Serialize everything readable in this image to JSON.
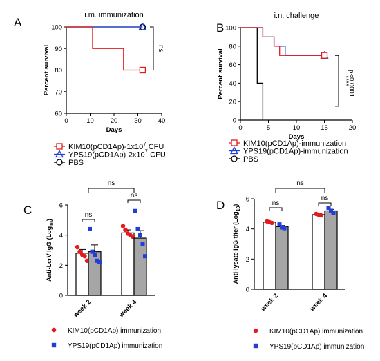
{
  "colors": {
    "red": "#e41a1c",
    "blue": "#1f3fd6",
    "black": "#000000",
    "gray": "#a6a6a6"
  },
  "chart_data": [
    {
      "panel": "A",
      "type": "line",
      "subtype": "kaplan-meier",
      "title": "i.m. immunization",
      "xlabel": "Days",
      "ylabel": "Percent survival",
      "xlim": [
        0,
        40
      ],
      "ylim": [
        60,
        100
      ],
      "xticks": [
        0,
        10,
        20,
        30,
        40
      ],
      "yticks": [
        60,
        70,
        80,
        90,
        100
      ],
      "annotation": "ns",
      "legend_position": "bottom",
      "series": [
        {
          "name": "KIM10(pCD1Ap)-1x10",
          "sup": "7",
          "suffix": " CFU",
          "color": "#e41a1c",
          "marker": "square",
          "x": [
            0,
            11,
            24,
            32
          ],
          "y": [
            100,
            90,
            80,
            80
          ]
        },
        {
          "name": "YPS19(pCD1Ap)-2x10",
          "sup": "7",
          "suffix": " CFU",
          "color": "#1f3fd6",
          "marker": "triangle",
          "x": [
            0,
            32
          ],
          "y": [
            100,
            100
          ]
        },
        {
          "name": "PBS",
          "color": "#000000",
          "marker": "circle",
          "x": [
            0,
            32
          ],
          "y": [
            100,
            100
          ]
        }
      ]
    },
    {
      "panel": "B",
      "type": "line",
      "subtype": "kaplan-meier",
      "title": "i.n. challenge",
      "xlabel": "Days",
      "ylabel": "Percent survival",
      "xlim": [
        0,
        20
      ],
      "ylim": [
        0,
        100
      ],
      "xticks": [
        0,
        5,
        10,
        15,
        20
      ],
      "yticks": [
        0,
        20,
        40,
        60,
        80,
        100
      ],
      "annotation": "****",
      "annotation2": "p<0.0001",
      "legend_position": "bottom",
      "series": [
        {
          "name": "KIM10(pCD1Ap)-immunization",
          "color": "#e41a1c",
          "marker": "square",
          "x": [
            0,
            4,
            6,
            7,
            15
          ],
          "y": [
            100,
            90,
            80,
            70,
            70
          ]
        },
        {
          "name": "YPS19(pCD1Ap)-immunization",
          "color": "#1f3fd6",
          "marker": "triangle",
          "x": [
            0,
            4,
            6,
            8,
            15
          ],
          "y": [
            100,
            90,
            80,
            70,
            70
          ]
        },
        {
          "name": "PBS",
          "color": "#000000",
          "marker": "circle",
          "x": [
            0,
            3,
            4
          ],
          "y": [
            100,
            40,
            0
          ]
        }
      ]
    },
    {
      "panel": "C",
      "type": "bar",
      "ylabel": "Anti-LcrV IgG (Log",
      "ylabel_sub": "10",
      "ylabel_end": ")",
      "categories": [
        "week 2",
        "week 4"
      ],
      "ylim": [
        0,
        6
      ],
      "yticks": [
        0,
        2,
        4,
        6
      ],
      "comparisons": [
        {
          "groups": "within week 2",
          "label": "ns"
        },
        {
          "groups": "within week 4",
          "label": "ns"
        },
        {
          "groups": "week 2 vs week 4",
          "label": "ns"
        }
      ],
      "legend_position": "bottom",
      "series": [
        {
          "name": "KIM10(pCD1Ap) immunization",
          "color": "#e41a1c",
          "fill": "#ffffff",
          "values": [
            2.8,
            4.15
          ],
          "sem": [
            0.25,
            0.2
          ],
          "points": [
            [
              3.2,
              2.9,
              2.7,
              2.6,
              2.3
            ],
            [
              4.6,
              4.35,
              4.1,
              4.0,
              3.9
            ]
          ]
        },
        {
          "name": "YPS19(pCD1Ap) immunization",
          "color": "#1f3fd6",
          "fill": "#a6a6a6",
          "values": [
            2.9,
            3.8
          ],
          "sem": [
            0.45,
            0.5
          ],
          "points": [
            [
              4.4,
              2.9,
              2.7,
              2.3,
              2.2
            ],
            [
              5.6,
              4.4,
              4.0,
              3.4,
              2.6
            ]
          ]
        }
      ]
    },
    {
      "panel": "D",
      "type": "bar",
      "ylabel": "Anti-lysate IgG titer (Log",
      "ylabel_sub": "10",
      "ylabel_end": ")",
      "categories": [
        "week 2",
        "week 4"
      ],
      "ylim": [
        0,
        6
      ],
      "yticks": [
        0,
        2,
        4,
        6
      ],
      "comparisons": [
        {
          "groups": "within week 2",
          "label": "ns"
        },
        {
          "groups": "within week 4",
          "label": "ns"
        },
        {
          "groups": "week 2 vs week 4",
          "label": "ns"
        }
      ],
      "legend_position": "bottom",
      "series": [
        {
          "name": "KIM10(pCD1Ap) immunization",
          "color": "#e41a1c",
          "fill": "#ffffff",
          "values": [
            4.45,
            4.95
          ],
          "sem": [
            0.05,
            0.08
          ],
          "points": [
            [
              4.5,
              4.45,
              4.4
            ],
            [
              5.0,
              4.95,
              4.9
            ]
          ]
        },
        {
          "name": "YPS19(pCD1Ap) immunization",
          "color": "#1f3fd6",
          "fill": "#a6a6a6",
          "values": [
            4.15,
            5.2
          ],
          "sem": [
            0.08,
            0.1
          ],
          "points": [
            [
              4.3,
              4.1,
              4.05
            ],
            [
              5.4,
              5.2,
              5.05
            ]
          ]
        }
      ]
    }
  ]
}
